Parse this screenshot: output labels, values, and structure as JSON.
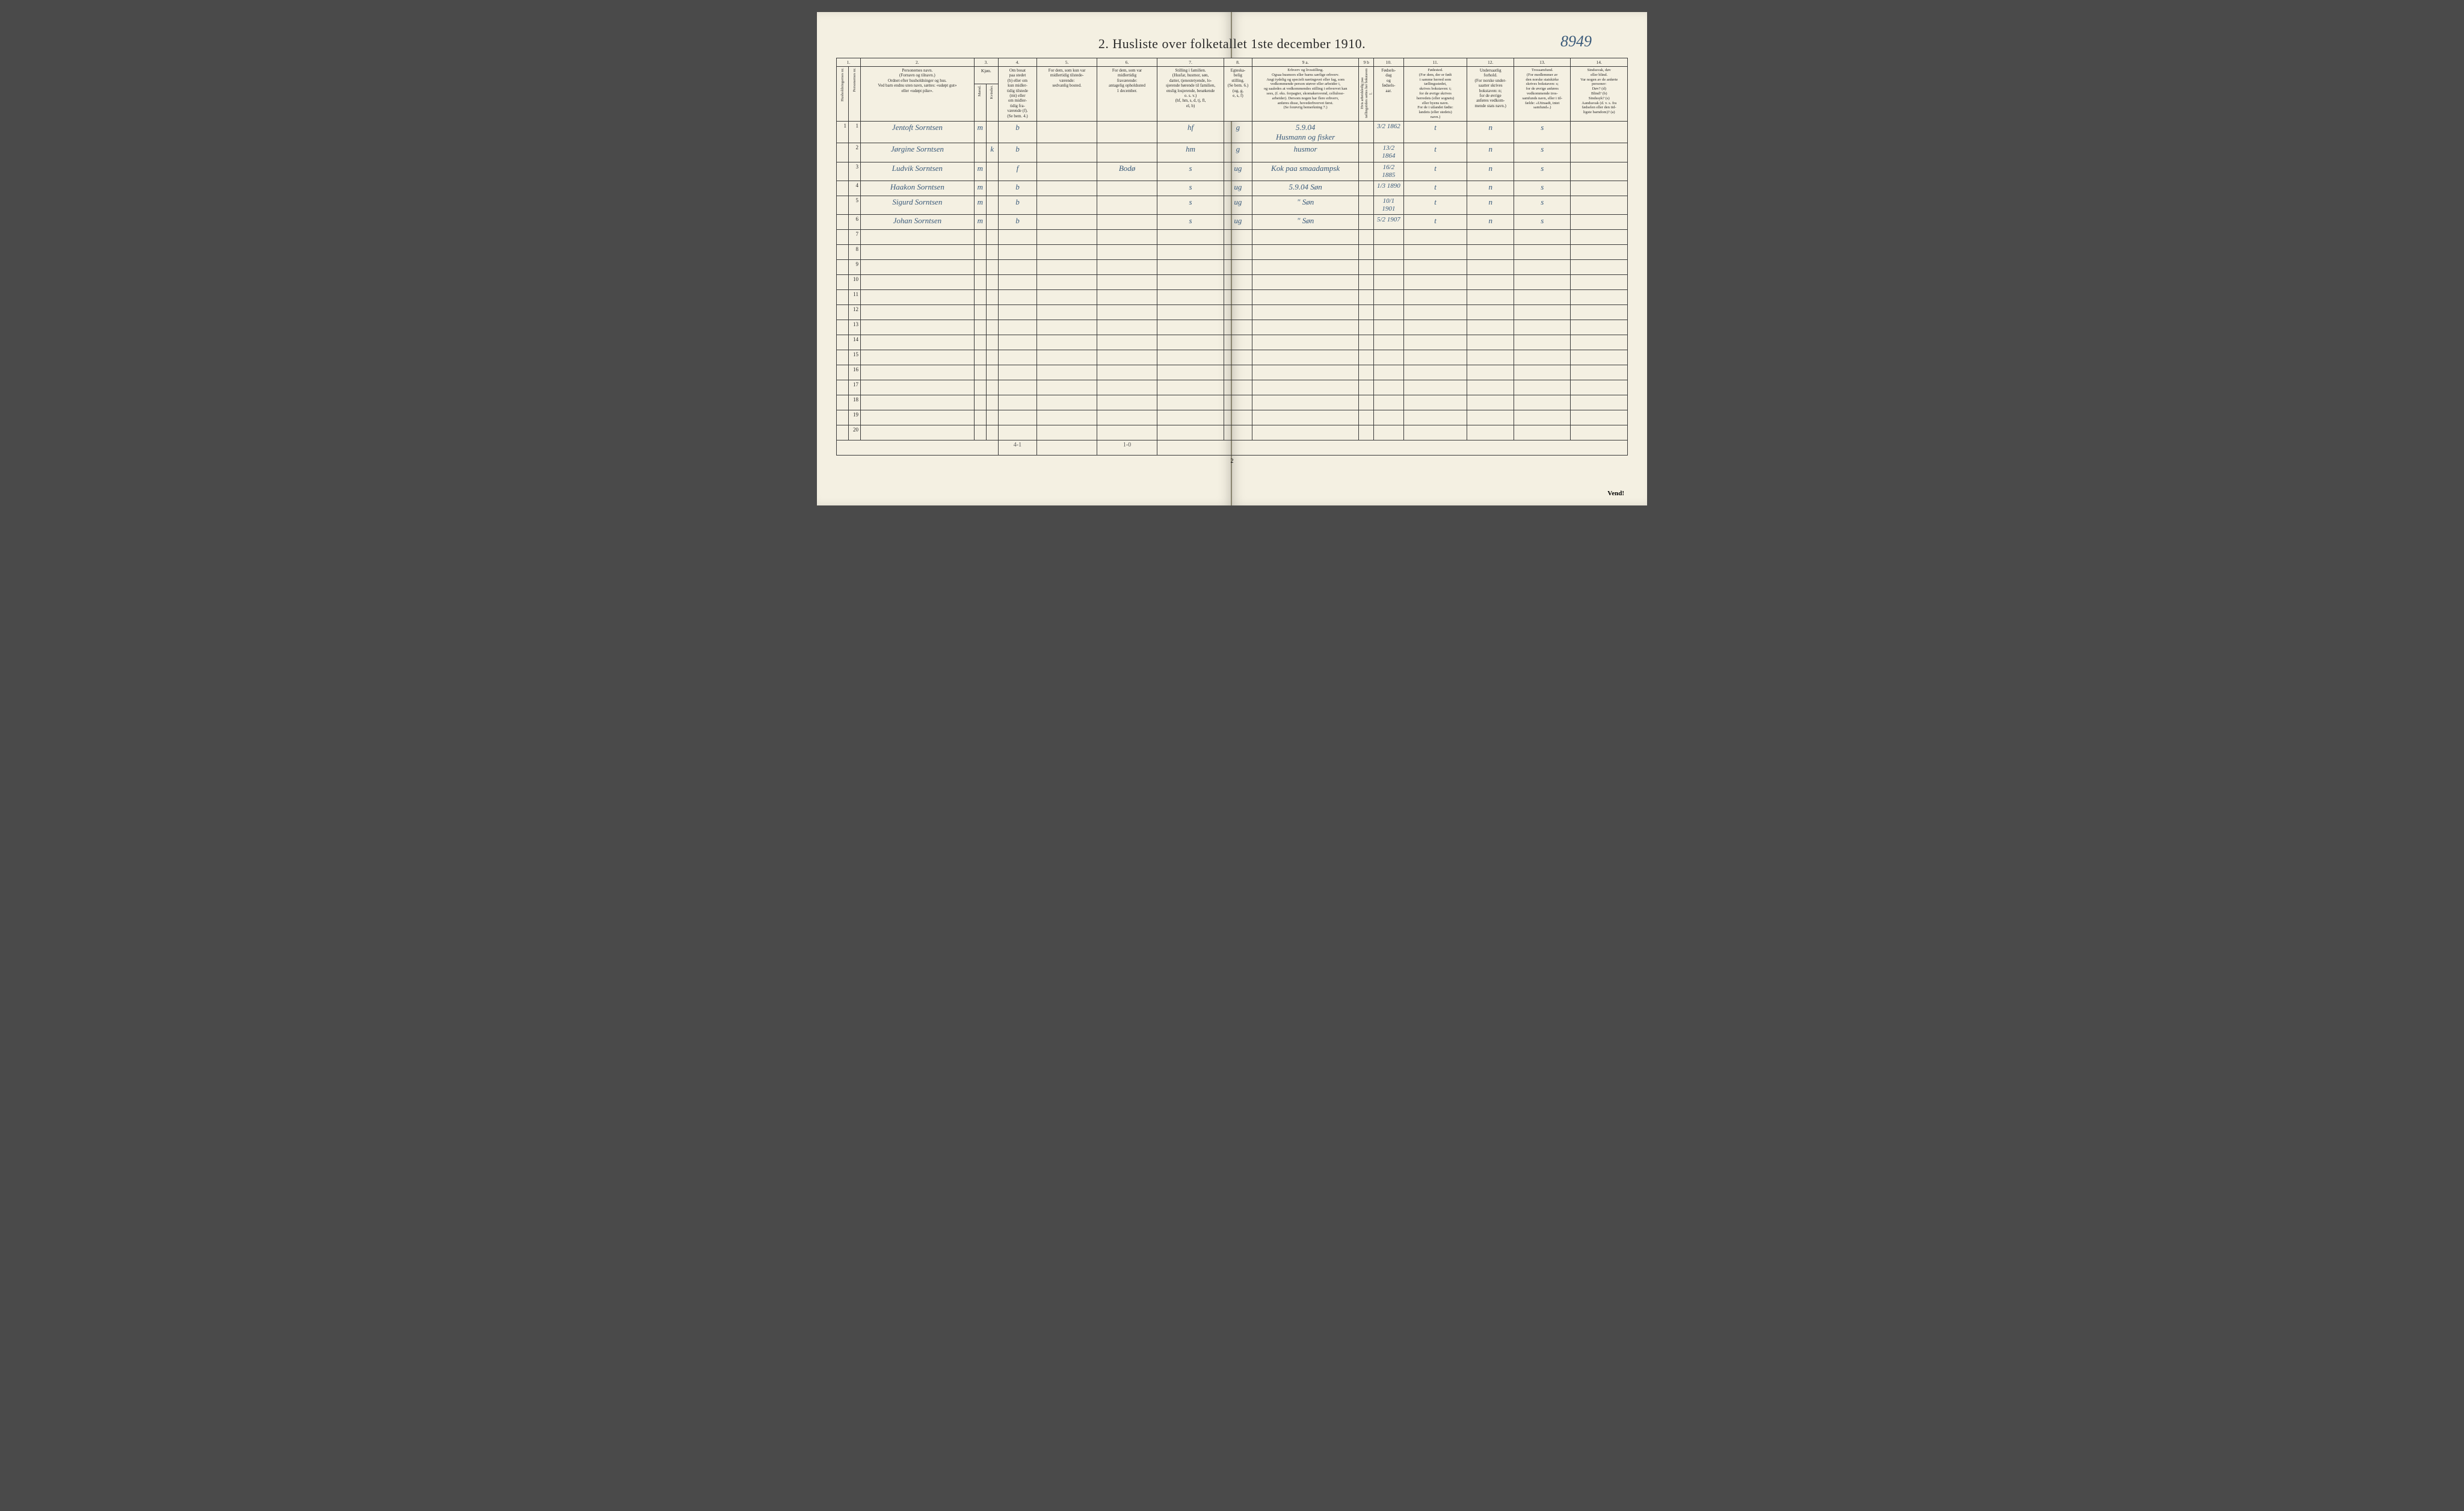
{
  "title": "2.  Husliste over folketallet 1ste december 1910.",
  "top_handwritten": "8949",
  "page_number": "2",
  "vend_label": "Vend!",
  "colnums": [
    "1.",
    "",
    "2.",
    "3.",
    "",
    "4.",
    "5.",
    "6.",
    "7.",
    "8.",
    "9 a.",
    "9 b",
    "10.",
    "11.",
    "12.",
    "13.",
    "14."
  ],
  "headers": {
    "c1": "Husholdningernes nr.",
    "c1b": "Personernes nr.",
    "c2": "Personernes navn.\n(Fornavn og tilnavn.)\nOrdnet efter husholdninger og hus.\nVed barn endnu uten navn, sættes: «udøpt gut»\neller «udøpt pike».",
    "c3": "Kjøn.",
    "c3a": "Mænd.",
    "c3b": "Kvinder.",
    "c3sub": "m.  k.",
    "c4": "Om bosat\npaa stedet\n(b) eller om\nkun midler-\ntidig tilstede\n(mt) eller\nom midler-\ntidig fra-\nværende (f).\n(Se bem. 4.)",
    "c5": "For dem, som kun var\nmidlertidig tilstede-\nværende:\nsedvanlig bosted.",
    "c6": "For dem, som var\nmidlertidig\nfraværende:\nantagelig opholdssted\n1 december.",
    "c7": "Stilling i familien.\n(Husfar, husmor, søn,\ndatter, tjenestetyende, lo-\nsjerende hørende til familien,\nenslig losjerende, besøkende\no. s. v.)\n(hf, hm, s, d, tj, fl,\nel, b)",
    "c8": "Egteska-\nbelig\nstilling.\n(Se bem. 6.)\n(ug, g,\ne, s, f)",
    "c9a": "Erhverv og livsstilling.\nOgsaa husmors eller barns særlige erhverv.\nAngi tydelig og specielt næringsvei eller fag, som\nvedkommende person utøver eller arbeider i,\nog saaledes at vedkommendes stilling i erhvervet kan\nsees, (f. eks. forpagter, skomakersvend, cellulose-\narbeider). Dersom nogen har flere erhverv,\nanføres disse, hovederhvervet først.\n(Se forøvrig bemerkning 7.)",
    "c9b": "Hvis arbeidsledig\npaa tællingstiden sættes\nher bokstaven l.",
    "c10": "Fødsels-\ndag\nog\nfødsels-\naar.",
    "c11": "Fødested.\n(For dem, der er født\ni samme herred som\ntællingsstedet,\nskrives bokstaven: t;\nfor de øvrige skrives\nherredets (eller sognets)\neller byens navn.\nFor de i utlandet fødte:\nlandets (eller stedets)\nnavn.)",
    "c12": "Undersaatlig\nforhold.\n(For norske under-\nsaatter skrives\nbokstaven: n;\nfor de øvrige\nanføres vedkom-\nmende stats navn.)",
    "c13": "Trossamfund.\n(For medlemmer av\nden norske statskirke\nskrives bokstaven: s;\nfor de øvrige anføres\nvedkommende tros-\nsamfunds navn, eller i til-\nfælde: «Uttraadt, intet\nsamfund».)",
    "c14": "Sindssvak, døv\neller blind.\nVar nogen av de anførte\npersoner:\nDøv?        (d)\nBlind?      (b)\nSindssyk?  (s)\nAandssvak (d. v. s. fra\nfødselen eller den tid-\nligste barndom)? (a)"
  },
  "rows": [
    {
      "n1": "1",
      "n2": "1",
      "name": "Jentoft Sorntsen",
      "mk": "m",
      "b": "b",
      "c5": "",
      "c6": "",
      "c7": "hf",
      "c8": "g",
      "c9": "5.9.04\nHusmann og fisker",
      "c10": "3/2 1862",
      "c11": "t",
      "c12": "n",
      "c13": "s",
      "c14": ""
    },
    {
      "n1": "",
      "n2": "2",
      "name": "Jørgine Sorntsen",
      "mk": "k",
      "b": "b",
      "c5": "",
      "c6": "",
      "c7": "hm",
      "c8": "g",
      "c9": "husmor",
      "c10": "13/2 1864",
      "c11": "t",
      "c12": "n",
      "c13": "s",
      "c14": ""
    },
    {
      "n1": "",
      "n2": "3",
      "name": "Ludvik Sorntsen",
      "mk": "m",
      "b": "f",
      "c5": "",
      "c6": "Bodø",
      "c7": "s",
      "c8": "ug",
      "c9": "Kok paa smaadampsk",
      "c10": "16/2 1885",
      "c11": "t",
      "c12": "n",
      "c13": "s",
      "c14": ""
    },
    {
      "n1": "",
      "n2": "4",
      "name": "Haakon Sorntsen",
      "mk": "m",
      "b": "b",
      "c5": "",
      "c6": "",
      "c7": "s",
      "c8": "ug",
      "c9": "5.9.04 Søn",
      "c10": "1/3 1890",
      "c11": "t",
      "c12": "n",
      "c13": "s",
      "c14": ""
    },
    {
      "n1": "",
      "n2": "5",
      "name": "Sigurd Sorntsen",
      "mk": "m",
      "b": "b",
      "c5": "",
      "c6": "",
      "c7": "s",
      "c8": "ug",
      "c9": "\"   Søn",
      "c10": "10/1 1901",
      "c11": "t",
      "c12": "n",
      "c13": "s",
      "c14": ""
    },
    {
      "n1": "",
      "n2": "6",
      "name": "Johan Sorntsen",
      "mk": "m",
      "b": "b",
      "c5": "",
      "c6": "",
      "c7": "s",
      "c8": "ug",
      "c9": "\"   Søn",
      "c10": "5/2 1907",
      "c11": "t",
      "c12": "n",
      "c13": "s",
      "c14": ""
    }
  ],
  "empty_rows": [
    "7",
    "8",
    "9",
    "10",
    "11",
    "12",
    "13",
    "14",
    "15",
    "16",
    "17",
    "18",
    "19",
    "20"
  ],
  "footer": {
    "col4": "4-1",
    "col6": "1-0"
  }
}
